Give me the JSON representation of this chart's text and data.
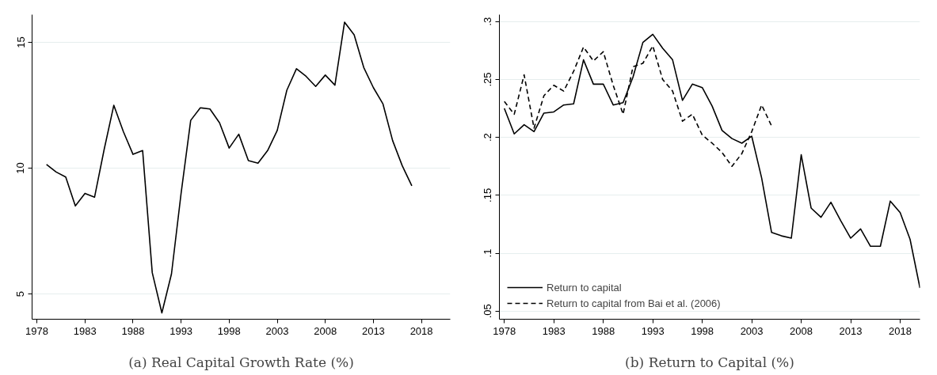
{
  "chart_data": [
    {
      "type": "line",
      "xlabel": "(a) Real Capital Growth Rate (%)",
      "x": [
        1979,
        1980,
        1981,
        1982,
        1983,
        1984,
        1985,
        1986,
        1987,
        1988,
        1989,
        1990,
        1991,
        1992,
        1993,
        1994,
        1995,
        1996,
        1997,
        1998,
        1999,
        2000,
        2001,
        2002,
        2003,
        2004,
        2005,
        2006,
        2007,
        2008,
        2009,
        2010,
        2011,
        2012,
        2013,
        2014,
        2015,
        2016,
        2017
      ],
      "series": [
        {
          "color": "#000000",
          "line_style": "solid",
          "values": [
            10.15,
            9.85,
            9.65,
            8.5,
            9.0,
            8.85,
            10.75,
            12.5,
            11.45,
            10.55,
            10.7,
            5.85,
            4.25,
            5.8,
            9.0,
            11.9,
            12.4,
            12.35,
            11.8,
            10.8,
            11.35,
            10.3,
            10.2,
            10.7,
            11.5,
            13.1,
            13.95,
            13.65,
            13.25,
            13.7,
            13.3,
            15.8,
            15.3,
            14.0,
            13.2,
            12.55,
            11.1,
            10.1,
            9.3
          ]
        }
      ],
      "xlim": [
        1977.5,
        2021
      ],
      "ylim": [
        4,
        16.1
      ],
      "xticks": [
        1978,
        1983,
        1988,
        1993,
        1998,
        2003,
        2008,
        2013,
        2018
      ],
      "yticks": [
        5,
        10,
        15
      ],
      "grid": "y",
      "legend": false
    },
    {
      "type": "line",
      "xlabel": "(b) Return to Capital (%)",
      "series": [
        {
          "name": "Return to capital",
          "color": "#000000",
          "line_style": "solid",
          "x": [
            1978,
            1979,
            1980,
            1981,
            1982,
            1983,
            1984,
            1985,
            1986,
            1987,
            1988,
            1989,
            1990,
            1991,
            1992,
            1993,
            1994,
            1995,
            1996,
            1997,
            1998,
            1999,
            2000,
            2001,
            2002,
            2003,
            2004,
            2005,
            2006,
            2007,
            2008,
            2009,
            2010,
            2011,
            2012,
            2013,
            2014,
            2015,
            2016,
            2017,
            2018,
            2019,
            2020
          ],
          "values": [
            0.225,
            0.203,
            0.211,
            0.205,
            0.221,
            0.222,
            0.228,
            0.229,
            0.267,
            0.246,
            0.246,
            0.228,
            0.23,
            0.252,
            0.282,
            0.289,
            0.277,
            0.267,
            0.232,
            0.246,
            0.243,
            0.227,
            0.206,
            0.199,
            0.195,
            0.201,
            0.165,
            0.118,
            0.115,
            0.113,
            0.185,
            0.139,
            0.131,
            0.144,
            0.128,
            0.113,
            0.121,
            0.106,
            0.106,
            0.145,
            0.135,
            0.112,
            0.07
          ]
        },
        {
          "name": "Return to capital from Bai et al. (2006)",
          "color": "#000000",
          "line_style": "dashed",
          "x": [
            1978,
            1979,
            1980,
            1981,
            1982,
            1983,
            1984,
            1985,
            1986,
            1987,
            1988,
            1989,
            1990,
            1991,
            1992,
            1993,
            1994,
            1995,
            1996,
            1997,
            1998,
            1999,
            2000,
            2001,
            2002,
            2003,
            2004,
            2005
          ],
          "values": [
            0.231,
            0.22,
            0.254,
            0.208,
            0.236,
            0.245,
            0.24,
            0.257,
            0.278,
            0.266,
            0.274,
            0.245,
            0.22,
            0.261,
            0.264,
            0.279,
            0.25,
            0.24,
            0.214,
            0.22,
            0.202,
            0.195,
            0.187,
            0.175,
            0.186,
            0.205,
            0.228,
            0.21
          ]
        }
      ],
      "xlim": [
        1977.5,
        2020
      ],
      "ylim": [
        0.043,
        0.306
      ],
      "xticks": [
        1978,
        1983,
        1988,
        1993,
        1998,
        2003,
        2008,
        2013,
        2018
      ],
      "yticks": [
        {
          "value": 0.05,
          "label": ".05"
        },
        {
          "value": 0.1,
          "label": ".1"
        },
        {
          "value": 0.15,
          "label": ".15"
        },
        {
          "value": 0.2,
          "label": ".2"
        },
        {
          "value": 0.25,
          "label": ".25"
        },
        {
          "value": 0.3,
          "label": ".3"
        }
      ],
      "grid": "y",
      "legend": "bottom left"
    }
  ]
}
